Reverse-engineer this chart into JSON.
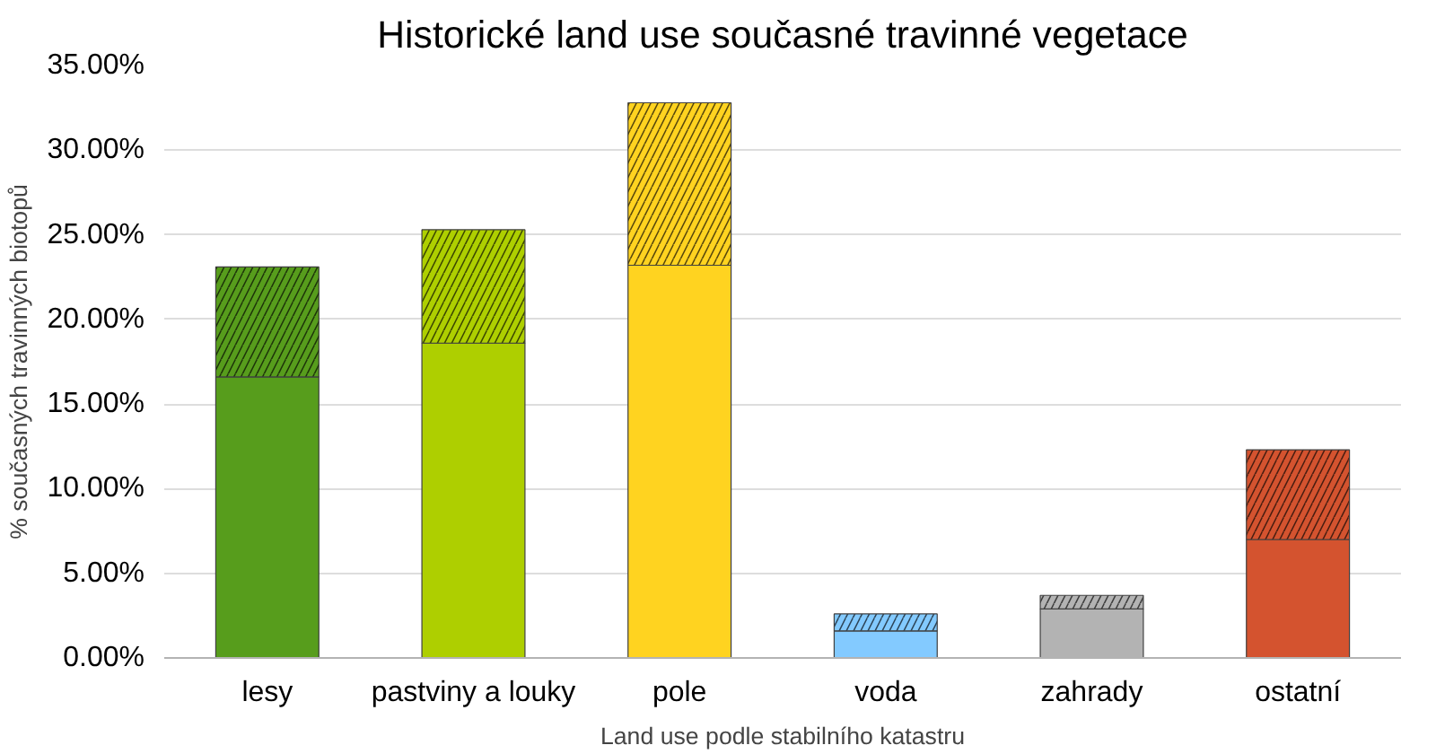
{
  "chart_data": {
    "type": "bar",
    "stacked": true,
    "title": "Historické land use současné travinné vegetace",
    "xlabel": "Land use podle stabilního katastru",
    "ylabel": "% současných travinných biotopů",
    "categories": [
      "lesy",
      "pastviny a louky",
      "pole",
      "voda",
      "zahrady",
      "ostatní"
    ],
    "series": [
      {
        "colors": [
          "#579d1c",
          "#aecf00",
          "#ffd320",
          "#83caff",
          "#b3b3b3",
          "#d4532f"
        ],
        "values": [
          16.6,
          18.6,
          23.2,
          1.6,
          2.9,
          7.0
        ]
      },
      {
        "colors": [
          "#579d1c",
          "#aecf00",
          "#ffd320",
          "#83caff",
          "#b3b3b3",
          "#d4532f"
        ],
        "values": [
          6.5,
          6.7,
          9.6,
          1.0,
          0.8,
          5.3
        ]
      }
    ],
    "ylim": [
      0,
      35
    ],
    "yticks": [
      {
        "value": 0,
        "label": "0.00%"
      },
      {
        "value": 5,
        "label": "5.00%"
      },
      {
        "value": 10,
        "label": "10.00%"
      },
      {
        "value": 15,
        "label": "15.00%"
      },
      {
        "value": 20,
        "label": "20.00%"
      },
      {
        "value": 25,
        "label": "25.00%"
      },
      {
        "value": 30,
        "label": "30.00%"
      },
      {
        "value": 35,
        "label": "35.00%"
      }
    ],
    "grid": "y"
  }
}
